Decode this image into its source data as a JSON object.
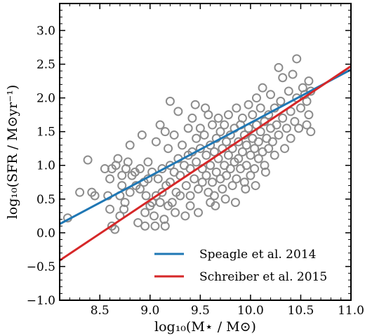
{
  "chart_data": {
    "type": "scatter",
    "xlabel": "log₁₀(M⋆ / M⊙)",
    "ylabel": "log₁₀(SFR / M⊙yr⁻¹)",
    "xlim": [
      8.1,
      11.0
    ],
    "ylim": [
      -1.0,
      3.4
    ],
    "xticks": [
      8.5,
      9.0,
      9.5,
      10.0,
      10.5,
      11.0
    ],
    "xtick_labels": [
      "8.5",
      "9.0",
      "9.5",
      "10.0",
      "10.5",
      "11.0"
    ],
    "yticks": [
      -1.0,
      -0.5,
      0.0,
      0.5,
      1.0,
      1.5,
      2.0,
      2.5,
      3.0
    ],
    "ytick_labels": [
      "−1.0",
      "−0.5",
      "0.0",
      "0.5",
      "1.0",
      "1.5",
      "2.0",
      "2.5",
      "3.0"
    ],
    "grid": false,
    "legend_position": "bottom-right",
    "marker_color": "#8c8c8c",
    "series": [
      {
        "name": "",
        "kind": "scatter",
        "points": [
          [
            8.18,
            0.22
          ],
          [
            8.3,
            0.6
          ],
          [
            8.38,
            1.08
          ],
          [
            8.42,
            0.6
          ],
          [
            8.45,
            0.55
          ],
          [
            8.55,
            0.95
          ],
          [
            8.58,
            0.55
          ],
          [
            8.6,
            0.35
          ],
          [
            8.6,
            0.8
          ],
          [
            8.62,
            0.1
          ],
          [
            8.62,
            0.95
          ],
          [
            8.65,
            0.05
          ],
          [
            8.66,
            1.0
          ],
          [
            8.68,
            1.1
          ],
          [
            8.7,
            0.55
          ],
          [
            8.7,
            0.25
          ],
          [
            8.72,
            0.85
          ],
          [
            8.72,
            0.7
          ],
          [
            8.74,
            0.35
          ],
          [
            8.75,
            0.45
          ],
          [
            8.76,
            0.95
          ],
          [
            8.78,
            1.05
          ],
          [
            8.8,
            0.6
          ],
          [
            8.8,
            1.3
          ],
          [
            8.82,
            0.85
          ],
          [
            8.85,
            0.9
          ],
          [
            8.86,
            0.7
          ],
          [
            8.88,
            0.15
          ],
          [
            8.9,
            0.65
          ],
          [
            8.9,
            0.95
          ],
          [
            8.92,
            1.45
          ],
          [
            8.94,
            0.75
          ],
          [
            8.95,
            0.3
          ],
          [
            8.96,
            0.55
          ],
          [
            8.98,
            1.05
          ],
          [
            8.98,
            0.8
          ],
          [
            9.0,
            0.4
          ],
          [
            9.02,
            0.9
          ],
          [
            9.02,
            0.45
          ],
          [
            9.04,
            0.25
          ],
          [
            9.06,
            1.35
          ],
          [
            9.06,
            0.55
          ],
          [
            9.08,
            0.8
          ],
          [
            9.1,
            0.45
          ],
          [
            9.1,
            1.6
          ],
          [
            9.12,
            0.95
          ],
          [
            9.12,
            0.6
          ],
          [
            9.14,
            0.2
          ],
          [
            9.15,
            1.5
          ],
          [
            9.16,
            0.7
          ],
          [
            9.18,
            1.25
          ],
          [
            9.18,
            0.4
          ],
          [
            9.2,
            1.0
          ],
          [
            9.2,
            0.75
          ],
          [
            9.22,
            0.45
          ],
          [
            9.24,
            1.45
          ],
          [
            9.24,
            0.9
          ],
          [
            9.26,
            0.6
          ],
          [
            9.28,
            1.8
          ],
          [
            9.28,
            1.1
          ],
          [
            9.3,
            0.85
          ],
          [
            9.3,
            0.55
          ],
          [
            9.32,
            1.3
          ],
          [
            9.34,
            1.0
          ],
          [
            9.36,
            0.7
          ],
          [
            9.38,
            1.55
          ],
          [
            9.38,
            1.15
          ],
          [
            9.4,
            0.95
          ],
          [
            9.4,
            0.4
          ],
          [
            9.42,
            1.7
          ],
          [
            9.42,
            1.2
          ],
          [
            9.44,
            0.8
          ],
          [
            9.46,
            1.4
          ],
          [
            9.46,
            1.05
          ],
          [
            9.48,
            0.65
          ],
          [
            9.48,
            0.3
          ],
          [
            9.5,
            1.55
          ],
          [
            9.5,
            1.25
          ],
          [
            9.52,
            0.95
          ],
          [
            9.52,
            0.75
          ],
          [
            9.54,
            1.45
          ],
          [
            9.56,
            1.15
          ],
          [
            9.56,
            0.85
          ],
          [
            9.58,
            1.75
          ],
          [
            9.58,
            0.6
          ],
          [
            9.6,
            1.3
          ],
          [
            9.6,
            1.0
          ],
          [
            9.62,
            1.6
          ],
          [
            9.62,
            0.75
          ],
          [
            9.64,
            1.2
          ],
          [
            9.64,
            0.55
          ],
          [
            9.66,
            1.4
          ],
          [
            9.66,
            0.9
          ],
          [
            9.68,
            1.7
          ],
          [
            9.68,
            1.1
          ],
          [
            9.7,
            0.8
          ],
          [
            9.7,
            1.5
          ],
          [
            9.72,
            1.25
          ],
          [
            9.72,
            0.65
          ],
          [
            9.74,
            1.0
          ],
          [
            9.74,
            1.6
          ],
          [
            9.76,
            1.35
          ],
          [
            9.76,
            0.85
          ],
          [
            9.78,
            1.15
          ],
          [
            9.78,
            1.75
          ],
          [
            9.8,
            0.95
          ],
          [
            9.8,
            1.45
          ],
          [
            9.82,
            1.25
          ],
          [
            9.82,
            0.7
          ],
          [
            9.84,
            1.55
          ],
          [
            9.84,
            1.05
          ],
          [
            9.86,
            1.85
          ],
          [
            9.86,
            0.8
          ],
          [
            9.88,
            1.35
          ],
          [
            9.88,
            1.1
          ],
          [
            9.9,
            1.6
          ],
          [
            9.9,
            0.95
          ],
          [
            9.92,
            1.2
          ],
          [
            9.92,
            1.7
          ],
          [
            9.94,
            1.45
          ],
          [
            9.94,
            0.75
          ],
          [
            9.96,
            1.0
          ],
          [
            9.96,
            1.3
          ],
          [
            9.98,
            1.55
          ],
          [
            9.98,
            1.9
          ],
          [
            10.0,
            1.15
          ],
          [
            10.0,
            0.85
          ],
          [
            10.02,
            1.4
          ],
          [
            10.02,
            1.75
          ],
          [
            10.04,
            1.25
          ],
          [
            10.04,
            0.95
          ],
          [
            10.06,
            1.6
          ],
          [
            10.06,
            2.0
          ],
          [
            10.08,
            1.1
          ],
          [
            10.08,
            1.35
          ],
          [
            10.1,
            1.5
          ],
          [
            10.1,
            1.85
          ],
          [
            10.12,
            1.2
          ],
          [
            10.12,
            2.15
          ],
          [
            10.14,
            1.65
          ],
          [
            10.14,
            1.0
          ],
          [
            10.16,
            1.4
          ],
          [
            10.18,
            1.75
          ],
          [
            10.18,
            1.25
          ],
          [
            10.2,
            2.05
          ],
          [
            10.2,
            1.55
          ],
          [
            10.22,
            1.35
          ],
          [
            10.24,
            1.85
          ],
          [
            10.24,
            1.15
          ],
          [
            10.26,
            1.6
          ],
          [
            10.28,
            2.45
          ],
          [
            10.28,
            1.45
          ],
          [
            10.3,
            1.95
          ],
          [
            10.32,
            1.7
          ],
          [
            10.32,
            2.3
          ],
          [
            10.34,
            1.25
          ],
          [
            10.36,
            1.55
          ],
          [
            10.38,
            2.1
          ],
          [
            10.4,
            1.8
          ],
          [
            10.4,
            1.4
          ],
          [
            10.42,
            2.35
          ],
          [
            10.44,
            1.65
          ],
          [
            10.46,
            2.58
          ],
          [
            10.46,
            2.0
          ],
          [
            10.48,
            1.55
          ],
          [
            10.5,
            1.85
          ],
          [
            10.52,
            2.15
          ],
          [
            10.54,
            2.05
          ],
          [
            10.56,
            1.6
          ],
          [
            10.56,
            1.95
          ],
          [
            10.58,
            2.25
          ],
          [
            10.58,
            1.75
          ],
          [
            10.6,
            1.5
          ],
          [
            10.6,
            2.1
          ],
          [
            9.95,
            0.65
          ],
          [
            9.85,
            0.45
          ],
          [
            9.6,
            0.45
          ],
          [
            9.4,
            0.55
          ],
          [
            9.25,
            0.3
          ],
          [
            9.15,
            0.1
          ],
          [
            9.05,
            0.1
          ],
          [
            8.95,
            0.1
          ],
          [
            9.35,
            0.25
          ],
          [
            9.65,
            0.4
          ],
          [
            9.75,
            0.5
          ],
          [
            10.05,
            0.7
          ],
          [
            10.15,
            0.9
          ],
          [
            9.55,
            1.85
          ],
          [
            9.45,
            1.9
          ],
          [
            9.2,
            1.95
          ]
        ]
      },
      {
        "name": "Speagle et al. 2014",
        "kind": "line",
        "color": "#1f77b4",
        "x": [
          8.1,
          11.0
        ],
        "y": [
          0.13,
          2.42
        ]
      },
      {
        "name": "Schreiber et al. 2015",
        "kind": "line",
        "color": "#d62728",
        "x": [
          8.1,
          11.0
        ],
        "y": [
          -0.41,
          2.47
        ]
      }
    ]
  }
}
